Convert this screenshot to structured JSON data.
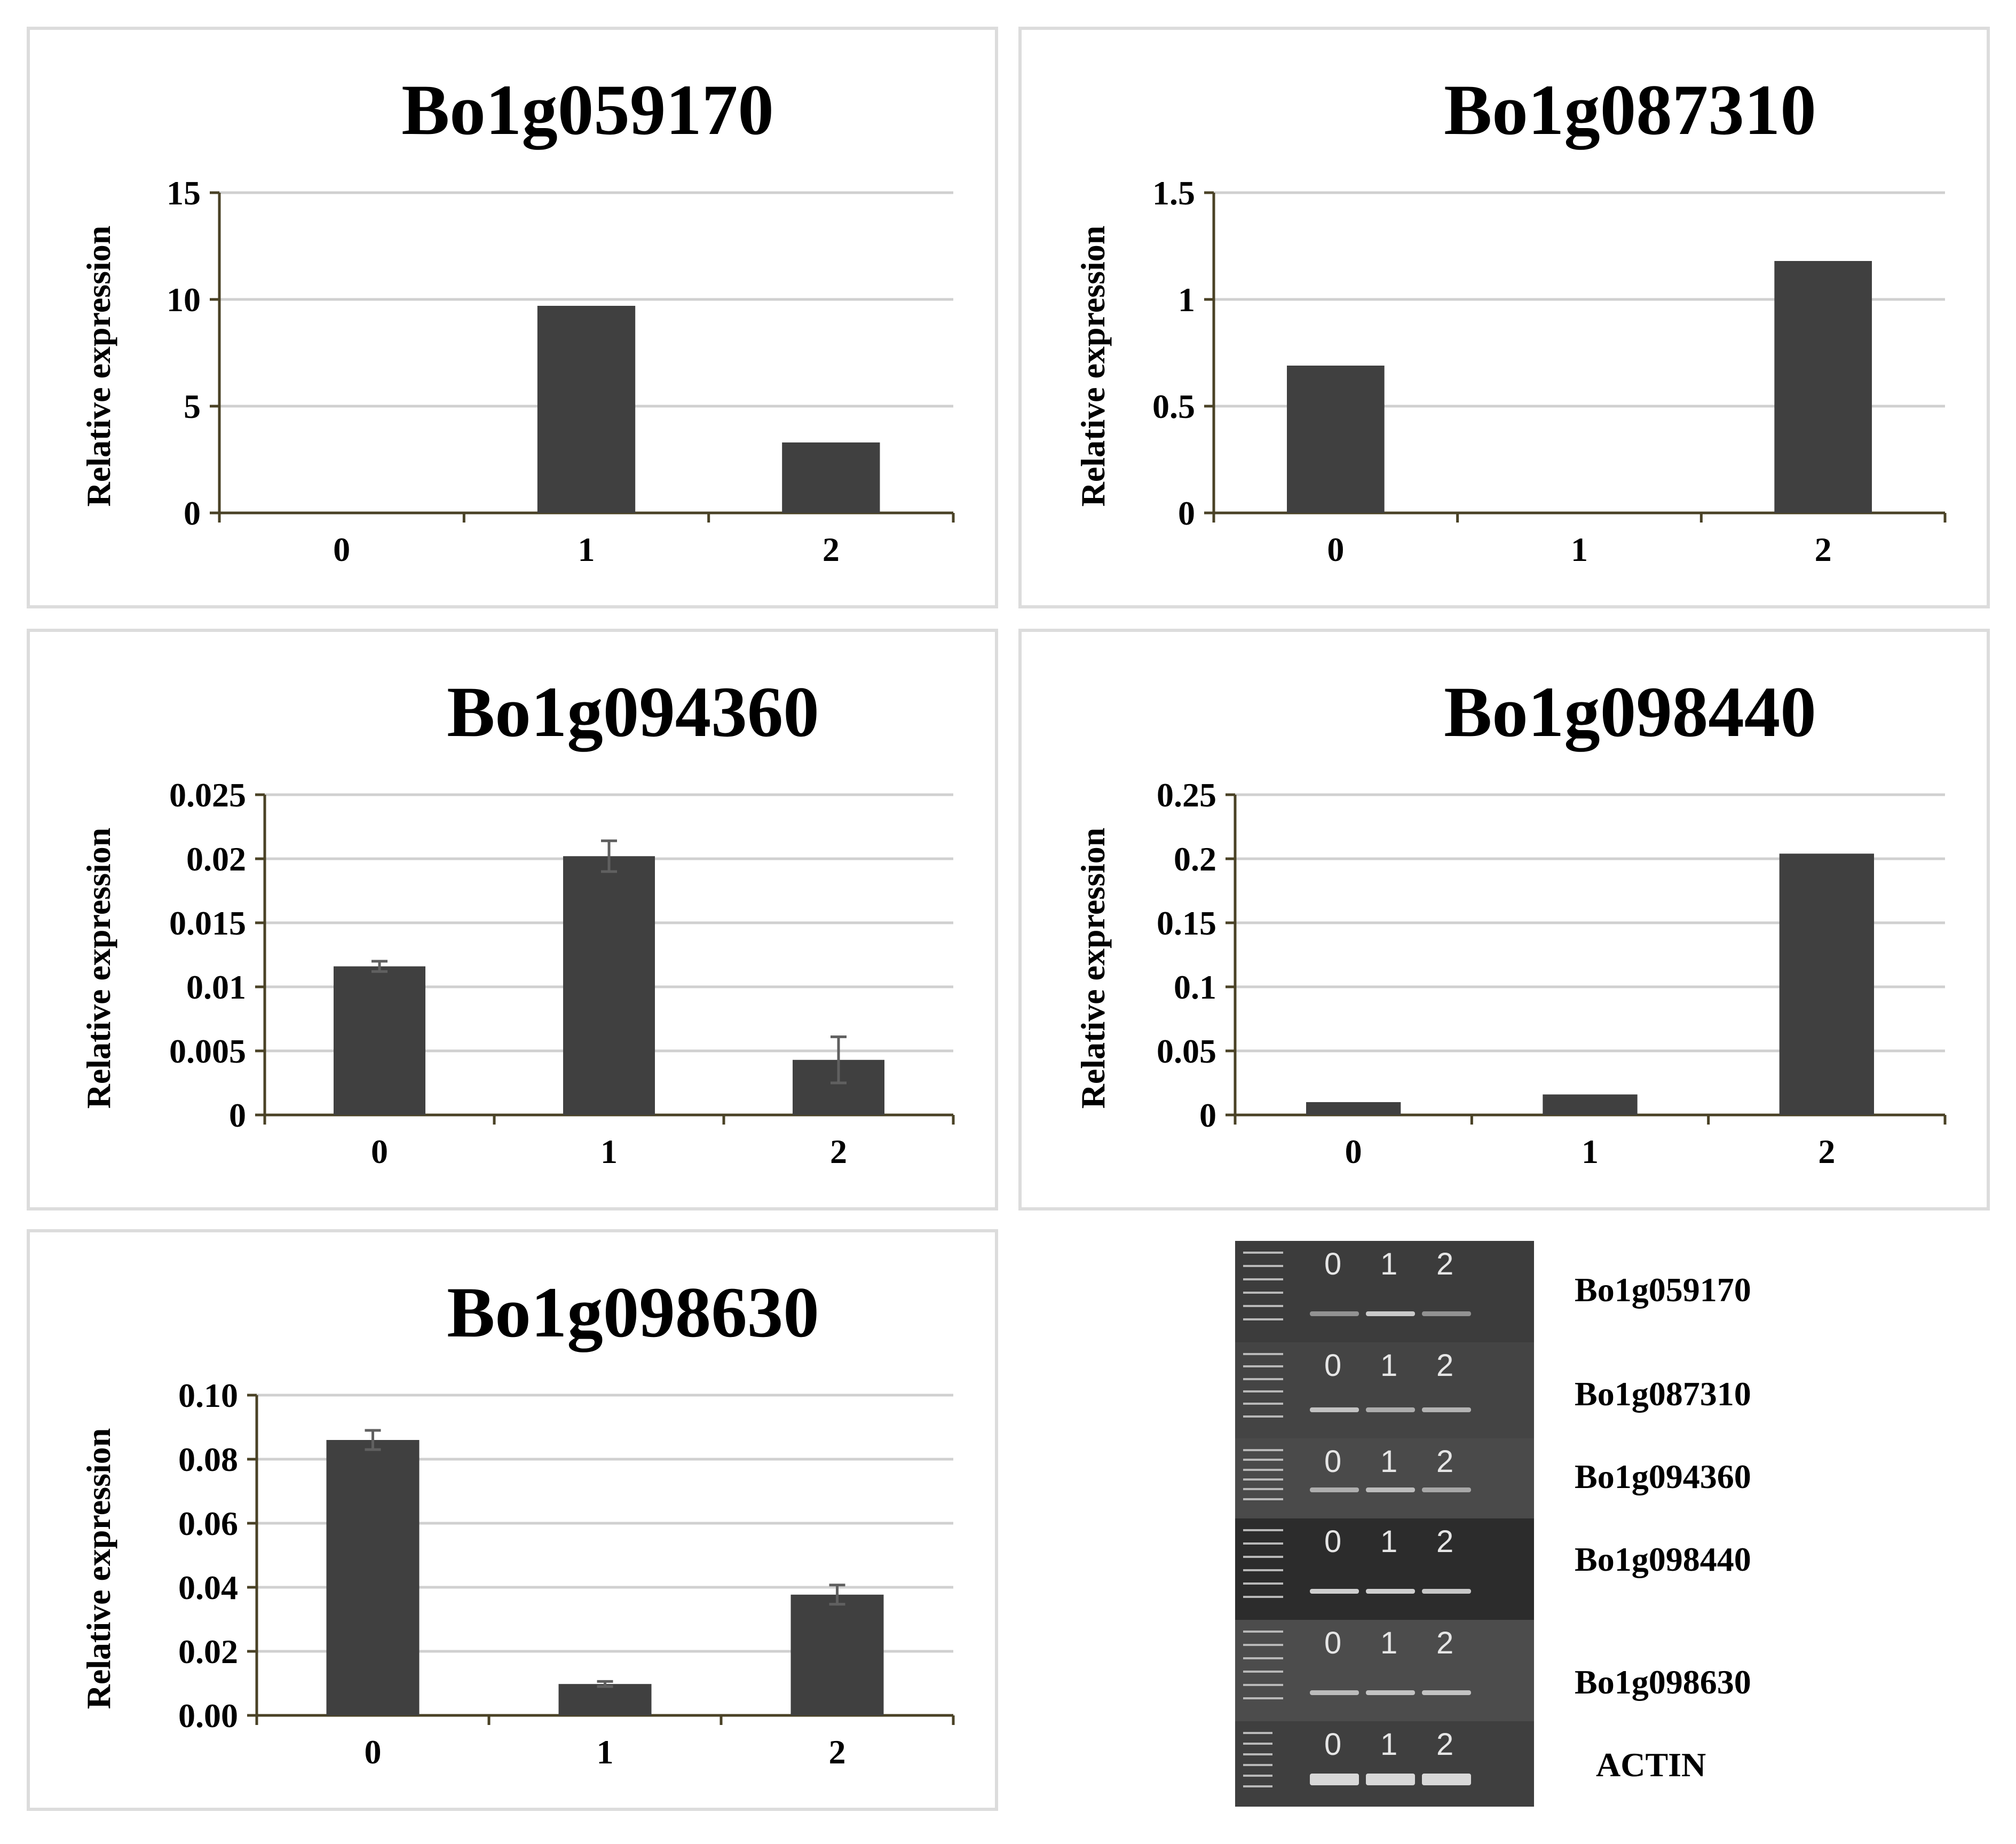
{
  "colors": {
    "bar": "#404040",
    "grid": "#d0d0d0",
    "axis": "#4a4226",
    "error_bar": "#606060"
  },
  "chart_data": [
    {
      "type": "bar",
      "title": "Bo1g059170",
      "ylabel": "Relative expression",
      "xlabel": "",
      "categories": [
        "0",
        "1",
        "2"
      ],
      "values": [
        0,
        9.7,
        3.3
      ],
      "errors": [
        0,
        0,
        0
      ],
      "yticks": [
        "0",
        "5",
        "10",
        "15"
      ],
      "ylim": [
        0,
        15
      ]
    },
    {
      "type": "bar",
      "title": "Bo1g087310",
      "ylabel": "Relative expression",
      "xlabel": "",
      "categories": [
        "0",
        "1",
        "2"
      ],
      "values": [
        0.69,
        0,
        1.18
      ],
      "errors": [
        0,
        0,
        0
      ],
      "yticks": [
        "0",
        "0.5",
        "1",
        "1.5"
      ],
      "ylim": [
        0,
        1.5
      ]
    },
    {
      "type": "bar",
      "title": "Bo1g094360",
      "ylabel": "Relative expression",
      "xlabel": "",
      "categories": [
        "0",
        "1",
        "2"
      ],
      "values": [
        0.0116,
        0.0202,
        0.0043
      ],
      "errors": [
        0.0004,
        0.0012,
        0.0018
      ],
      "yticks": [
        "0",
        "0.005",
        "0.01",
        "0.015",
        "0.02",
        "0.025"
      ],
      "ylim": [
        0,
        0.025
      ]
    },
    {
      "type": "bar",
      "title": "Bo1g098440",
      "ylabel": "Relative expression",
      "xlabel": "",
      "categories": [
        "0",
        "1",
        "2"
      ],
      "values": [
        0.01,
        0.016,
        0.204
      ],
      "errors": [
        0,
        0,
        0
      ],
      "yticks": [
        "0",
        "0.05",
        "0.1",
        "0.15",
        "0.2",
        "0.25"
      ],
      "ylim": [
        0,
        0.25
      ]
    },
    {
      "type": "bar",
      "title": "Bo1g098630",
      "ylabel": "Relative expression",
      "xlabel": "",
      "categories": [
        "0",
        "1",
        "2"
      ],
      "values": [
        0.086,
        0.0098,
        0.0377
      ],
      "errors": [
        0.003,
        0.0008,
        0.003
      ],
      "yticks": [
        "0.00",
        "0.02",
        "0.04",
        "0.06",
        "0.08",
        "0.10"
      ],
      "ylim": [
        0,
        0.1
      ]
    }
  ],
  "gel": {
    "lanes": [
      "0",
      "1",
      "2"
    ],
    "genes": [
      {
        "label": "Bo1g059170",
        "lane_labels": [
          "0",
          "1",
          "2"
        ],
        "band_intensity": [
          0.55,
          0.9,
          0.55
        ]
      },
      {
        "label": "Bo1g087310",
        "lane_labels": [
          "0",
          "1",
          "2"
        ],
        "band_intensity": [
          0.85,
          0.7,
          0.75
        ]
      },
      {
        "label": "Bo1g094360",
        "lane_labels": [
          "0",
          "1",
          "2"
        ],
        "band_intensity": [
          0.7,
          0.8,
          0.65
        ]
      },
      {
        "label": "Bo1g098440",
        "lane_labels": [
          "0",
          "1",
          "2"
        ],
        "band_intensity": [
          0.95,
          0.95,
          0.9
        ]
      },
      {
        "label": "Bo1g098630",
        "lane_labels": [
          "0",
          "1",
          "2"
        ],
        "band_intensity": [
          0.8,
          0.85,
          0.85
        ]
      },
      {
        "label": "ACTIN",
        "lane_labels": [
          "0",
          "1",
          "2"
        ],
        "band_intensity": [
          1.0,
          1.0,
          1.0
        ]
      }
    ]
  }
}
